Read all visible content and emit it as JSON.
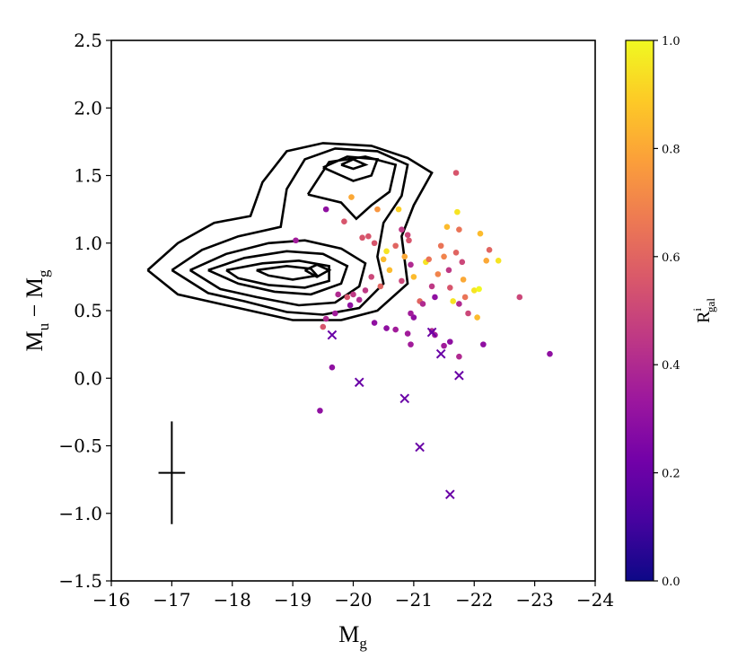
{
  "chart_data": {
    "type": "scatter",
    "title": "",
    "xlabel": {
      "main": "M",
      "sub": "g"
    },
    "ylabel": {
      "main1": "M",
      "sub1": "u",
      "minus": " − ",
      "main2": "M",
      "sub2": "g"
    },
    "xlim": [
      -16,
      -24
    ],
    "ylim": [
      -1.5,
      2.5
    ],
    "xticks": [
      -16,
      -17,
      -18,
      -19,
      -20,
      -21,
      -22,
      -23,
      -24
    ],
    "xtick_labels": [
      "−16",
      "−17",
      "−18",
      "−19",
      "−20",
      "−21",
      "−22",
      "−23",
      "−24"
    ],
    "yticks": [
      -1.5,
      -1.0,
      -0.5,
      0.0,
      0.5,
      1.0,
      1.5,
      2.0,
      2.5
    ],
    "ytick_labels": [
      "−1.5",
      "−1.0",
      "−0.5",
      "0.0",
      "0.5",
      "1.0",
      "1.5",
      "2.0",
      "2.5"
    ],
    "colorbar": {
      "label": {
        "main": "R",
        "sup": "i",
        "sub": "gal"
      },
      "range": [
        0,
        1
      ],
      "ticks": [
        0.0,
        0.2,
        0.4,
        0.6,
        0.8,
        1.0
      ],
      "tick_labels": [
        "0.0",
        "0.2",
        "0.4",
        "0.6",
        "0.8",
        "1.0"
      ],
      "colormap": "plasma",
      "colormap_stops": [
        "#0d0887",
        "#46039f",
        "#7201a8",
        "#9c179e",
        "#bd3786",
        "#d8576b",
        "#ed7953",
        "#fb9f3a",
        "#fdca26",
        "#f0f921"
      ]
    },
    "error_bar": {
      "x": -17.0,
      "y": -0.7,
      "x_err": 0.22,
      "y_err": 0.38
    },
    "contour_color": "#000000",
    "contours": [
      [
        [
          -16.6,
          0.8
        ],
        [
          -17.1,
          1.0
        ],
        [
          -17.7,
          1.15
        ],
        [
          -18.3,
          1.2
        ],
        [
          -18.5,
          1.45
        ],
        [
          -18.9,
          1.68
        ],
        [
          -19.5,
          1.74
        ],
        [
          -20.3,
          1.72
        ],
        [
          -20.9,
          1.63
        ],
        [
          -21.3,
          1.52
        ],
        [
          -21.0,
          1.28
        ],
        [
          -20.8,
          1.05
        ],
        [
          -20.9,
          0.7
        ],
        [
          -20.4,
          0.5
        ],
        [
          -19.8,
          0.43
        ],
        [
          -19.0,
          0.43
        ],
        [
          -18.5,
          0.48
        ],
        [
          -17.8,
          0.55
        ],
        [
          -17.1,
          0.62
        ],
        [
          -16.6,
          0.8
        ]
      ],
      [
        [
          -17.0,
          0.8
        ],
        [
          -17.5,
          0.95
        ],
        [
          -18.1,
          1.05
        ],
        [
          -18.8,
          1.12
        ],
        [
          -18.9,
          1.4
        ],
        [
          -19.2,
          1.62
        ],
        [
          -19.7,
          1.7
        ],
        [
          -20.4,
          1.68
        ],
        [
          -20.9,
          1.58
        ],
        [
          -20.8,
          1.35
        ],
        [
          -20.5,
          1.15
        ],
        [
          -20.4,
          0.9
        ],
        [
          -20.5,
          0.7
        ],
        [
          -20.1,
          0.52
        ],
        [
          -19.5,
          0.47
        ],
        [
          -18.9,
          0.49
        ],
        [
          -18.2,
          0.57
        ],
        [
          -17.6,
          0.63
        ],
        [
          -17.0,
          0.8
        ]
      ],
      [
        [
          -17.3,
          0.8
        ],
        [
          -17.9,
          0.92
        ],
        [
          -18.6,
          1.0
        ],
        [
          -19.2,
          1.02
        ],
        [
          -19.8,
          0.96
        ],
        [
          -20.2,
          0.85
        ],
        [
          -20.1,
          0.68
        ],
        [
          -19.7,
          0.56
        ],
        [
          -19.1,
          0.54
        ],
        [
          -18.4,
          0.6
        ],
        [
          -17.8,
          0.66
        ],
        [
          -17.3,
          0.8
        ]
      ],
      [
        [
          -17.6,
          0.8
        ],
        [
          -18.2,
          0.89
        ],
        [
          -18.9,
          0.94
        ],
        [
          -19.5,
          0.92
        ],
        [
          -19.9,
          0.83
        ],
        [
          -19.8,
          0.7
        ],
        [
          -19.3,
          0.62
        ],
        [
          -18.7,
          0.64
        ],
        [
          -18.1,
          0.7
        ],
        [
          -17.6,
          0.8
        ]
      ],
      [
        [
          -17.9,
          0.8
        ],
        [
          -18.5,
          0.85
        ],
        [
          -19.1,
          0.87
        ],
        [
          -19.6,
          0.83
        ],
        [
          -19.6,
          0.72
        ],
        [
          -19.2,
          0.67
        ],
        [
          -18.6,
          0.69
        ],
        [
          -18.1,
          0.74
        ],
        [
          -17.9,
          0.8
        ]
      ],
      [
        [
          -18.4,
          0.8
        ],
        [
          -18.9,
          0.83
        ],
        [
          -19.3,
          0.81
        ],
        [
          -19.4,
          0.76
        ],
        [
          -19.0,
          0.73
        ],
        [
          -18.6,
          0.76
        ],
        [
          -18.4,
          0.8
        ]
      ],
      [
        [
          -19.2,
          0.8
        ],
        [
          -19.4,
          0.84
        ],
        [
          -19.6,
          0.8
        ],
        [
          -19.4,
          0.75
        ],
        [
          -19.2,
          0.8
        ]
      ],
      [
        [
          -19.25,
          1.36
        ],
        [
          -19.6,
          1.6
        ],
        [
          -20.2,
          1.64
        ],
        [
          -20.7,
          1.58
        ],
        [
          -20.6,
          1.38
        ],
        [
          -20.3,
          1.28
        ],
        [
          -20.05,
          1.18
        ],
        [
          -19.8,
          1.3
        ],
        [
          -19.25,
          1.36
        ]
      ],
      [
        [
          -19.5,
          1.56
        ],
        [
          -19.9,
          1.64
        ],
        [
          -20.4,
          1.62
        ],
        [
          -20.3,
          1.5
        ],
        [
          -20.0,
          1.46
        ],
        [
          -19.5,
          1.56
        ]
      ],
      [
        [
          -19.8,
          1.58
        ],
        [
          -20.0,
          1.62
        ],
        [
          -20.2,
          1.58
        ],
        [
          -20.0,
          1.55
        ],
        [
          -19.8,
          1.58
        ]
      ]
    ],
    "points": [
      {
        "x": -19.55,
        "y": 1.25,
        "r": 0.3
      },
      {
        "x": -19.05,
        "y": 1.02,
        "r": 0.35
      },
      {
        "x": -19.85,
        "y": 1.16,
        "r": 0.55
      },
      {
        "x": -19.97,
        "y": 1.34,
        "r": 0.8
      },
      {
        "x": -20.25,
        "y": 1.05,
        "r": 0.55
      },
      {
        "x": -20.15,
        "y": 1.04,
        "r": 0.55
      },
      {
        "x": -20.35,
        "y": 1.0,
        "r": 0.55
      },
      {
        "x": -20.4,
        "y": 1.25,
        "r": 0.75
      },
      {
        "x": -20.5,
        "y": 0.88,
        "r": 0.85
      },
      {
        "x": -20.55,
        "y": 0.94,
        "r": 0.95
      },
      {
        "x": -20.6,
        "y": 0.8,
        "r": 0.85
      },
      {
        "x": -20.7,
        "y": 0.98,
        "r": 0.6
      },
      {
        "x": -20.75,
        "y": 1.25,
        "r": 0.9
      },
      {
        "x": -20.8,
        "y": 1.1,
        "r": 0.45
      },
      {
        "x": -20.85,
        "y": 0.9,
        "r": 0.8
      },
      {
        "x": -20.9,
        "y": 1.06,
        "r": 0.5
      },
      {
        "x": -20.92,
        "y": 1.02,
        "r": 0.55
      },
      {
        "x": -20.95,
        "y": 0.84,
        "r": 0.4
      },
      {
        "x": -20.45,
        "y": 0.68,
        "r": 0.6
      },
      {
        "x": -20.3,
        "y": 0.75,
        "r": 0.5
      },
      {
        "x": -20.2,
        "y": 0.65,
        "r": 0.45
      },
      {
        "x": -20.1,
        "y": 0.58,
        "r": 0.4
      },
      {
        "x": -20.0,
        "y": 0.62,
        "r": 0.45
      },
      {
        "x": -19.9,
        "y": 0.6,
        "r": 0.55
      },
      {
        "x": -19.75,
        "y": 0.62,
        "r": 0.4
      },
      {
        "x": -19.7,
        "y": 0.48,
        "r": 0.35
      },
      {
        "x": -19.55,
        "y": 0.44,
        "r": 0.4
      },
      {
        "x": -19.5,
        "y": 0.38,
        "r": 0.55
      },
      {
        "x": -19.95,
        "y": 0.54,
        "r": 0.3
      },
      {
        "x": -20.35,
        "y": 0.41,
        "r": 0.3
      },
      {
        "x": -20.55,
        "y": 0.37,
        "r": 0.3
      },
      {
        "x": -20.8,
        "y": 0.72,
        "r": 0.5
      },
      {
        "x": -21.0,
        "y": 0.75,
        "r": 0.85
      },
      {
        "x": -21.1,
        "y": 0.57,
        "r": 0.6
      },
      {
        "x": -21.15,
        "y": 0.55,
        "r": 0.4
      },
      {
        "x": -21.2,
        "y": 0.86,
        "r": 0.95
      },
      {
        "x": -21.25,
        "y": 0.88,
        "r": 0.65
      },
      {
        "x": -21.3,
        "y": 0.68,
        "r": 0.45
      },
      {
        "x": -21.35,
        "y": 0.6,
        "r": 0.3
      },
      {
        "x": -21.4,
        "y": 0.77,
        "r": 0.7
      },
      {
        "x": -21.45,
        "y": 0.98,
        "r": 0.65
      },
      {
        "x": -21.5,
        "y": 0.9,
        "r": 0.7
      },
      {
        "x": -21.55,
        "y": 1.12,
        "r": 0.85
      },
      {
        "x": -21.58,
        "y": 0.8,
        "r": 0.45
      },
      {
        "x": -21.6,
        "y": 0.67,
        "r": 0.55
      },
      {
        "x": -21.65,
        "y": 0.57,
        "r": 0.95
      },
      {
        "x": -21.7,
        "y": 0.93,
        "r": 0.6
      },
      {
        "x": -21.75,
        "y": 1.1,
        "r": 0.65
      },
      {
        "x": -21.72,
        "y": 1.23,
        "r": 0.95
      },
      {
        "x": -21.7,
        "y": 1.52,
        "r": 0.55
      },
      {
        "x": -21.8,
        "y": 0.86,
        "r": 0.5
      },
      {
        "x": -21.82,
        "y": 0.73,
        "r": 0.8
      },
      {
        "x": -21.85,
        "y": 0.6,
        "r": 0.65
      },
      {
        "x": -21.75,
        "y": 0.55,
        "r": 0.4
      },
      {
        "x": -21.9,
        "y": 0.48,
        "r": 0.5
      },
      {
        "x": -22.0,
        "y": 0.65,
        "r": 0.95
      },
      {
        "x": -22.05,
        "y": 0.45,
        "r": 0.85
      },
      {
        "x": -22.08,
        "y": 0.66,
        "r": 1.0
      },
      {
        "x": -22.1,
        "y": 1.07,
        "r": 0.85
      },
      {
        "x": -22.2,
        "y": 0.87,
        "r": 0.8
      },
      {
        "x": -22.25,
        "y": 0.95,
        "r": 0.6
      },
      {
        "x": -22.4,
        "y": 0.87,
        "r": 0.95
      },
      {
        "x": -22.75,
        "y": 0.6,
        "r": 0.5
      },
      {
        "x": -22.15,
        "y": 0.25,
        "r": 0.3
      },
      {
        "x": -23.25,
        "y": 0.18,
        "r": 0.3
      },
      {
        "x": -21.75,
        "y": 0.16,
        "r": 0.4
      },
      {
        "x": -21.6,
        "y": 0.27,
        "r": 0.3
      },
      {
        "x": -21.35,
        "y": 0.32,
        "r": 0.35
      },
      {
        "x": -21.5,
        "y": 0.24,
        "r": 0.35
      },
      {
        "x": -20.95,
        "y": 0.25,
        "r": 0.35
      },
      {
        "x": -20.9,
        "y": 0.33,
        "r": 0.35
      },
      {
        "x": -20.7,
        "y": 0.36,
        "r": 0.35
      },
      {
        "x": -21.0,
        "y": 0.45,
        "r": 0.3
      },
      {
        "x": -20.95,
        "y": 0.48,
        "r": 0.35
      },
      {
        "x": -21.3,
        "y": 0.35,
        "r": 0.4
      },
      {
        "x": -19.65,
        "y": 0.08,
        "r": 0.3
      },
      {
        "x": -19.45,
        "y": -0.24,
        "r": 0.3
      }
    ],
    "crosses": [
      {
        "x": -19.65,
        "y": 0.32,
        "r": 0.2
      },
      {
        "x": -20.1,
        "y": -0.03,
        "r": 0.2
      },
      {
        "x": -20.85,
        "y": -0.15,
        "r": 0.2
      },
      {
        "x": -21.3,
        "y": 0.34,
        "r": 0.2
      },
      {
        "x": -21.45,
        "y": 0.18,
        "r": 0.2
      },
      {
        "x": -21.75,
        "y": 0.02,
        "r": 0.2
      },
      {
        "x": -21.1,
        "y": -0.51,
        "r": 0.2
      },
      {
        "x": -21.6,
        "y": -0.86,
        "r": 0.2
      }
    ]
  }
}
